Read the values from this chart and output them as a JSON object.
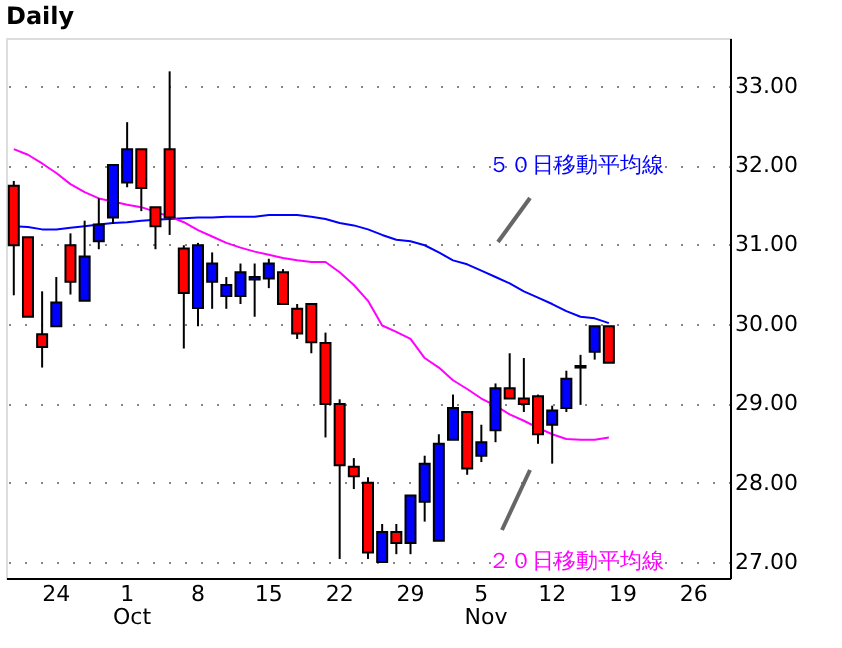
{
  "chart_data": {
    "type": "candlestick",
    "title": "Daily",
    "categories": [
      null,
      null,
      null,
      "24",
      null,
      null,
      null,
      null,
      "1",
      null,
      null,
      null,
      null,
      "8",
      null,
      null,
      null,
      null,
      "15",
      null,
      null,
      null,
      null,
      "22",
      null,
      null,
      null,
      null,
      "29",
      null,
      null,
      null,
      null,
      "5",
      null,
      null,
      null,
      null,
      "12",
      null,
      null,
      null,
      null,
      "19",
      null,
      null,
      null,
      null,
      "26",
      null,
      null
    ],
    "ohlc": [
      [
        31.74,
        31.8,
        30.36,
        30.99
      ],
      [
        31.09,
        31.09,
        30.09,
        30.09
      ],
      [
        29.87,
        30.41,
        29.45,
        29.71
      ],
      [
        29.97,
        30.59,
        29.97,
        30.27
      ],
      [
        30.99,
        31.14,
        30.37,
        30.53
      ],
      [
        30.29,
        31.3,
        30.29,
        30.85
      ],
      [
        31.04,
        31.58,
        30.94,
        31.25
      ],
      [
        31.34,
        32.0,
        31.26,
        32.0
      ],
      [
        31.78,
        32.54,
        31.72,
        32.2
      ],
      [
        32.2,
        32.2,
        31.42,
        31.71
      ],
      [
        31.47,
        31.47,
        30.94,
        31.23
      ],
      [
        32.2,
        33.18,
        31.12,
        31.34
      ],
      [
        30.95,
        30.99,
        29.69,
        30.39
      ],
      [
        30.2,
        31.02,
        29.97,
        30.99
      ],
      [
        30.53,
        30.9,
        30.19,
        30.76
      ],
      [
        30.35,
        30.59,
        30.19,
        30.49
      ],
      [
        30.35,
        30.76,
        30.25,
        30.65
      ],
      [
        30.56,
        30.76,
        30.09,
        30.59
      ],
      [
        30.57,
        30.82,
        30.45,
        30.76
      ],
      [
        30.65,
        30.69,
        30.25,
        30.25
      ],
      [
        30.19,
        30.25,
        29.81,
        29.88
      ],
      [
        30.25,
        30.25,
        29.63,
        29.77
      ],
      [
        29.76,
        29.89,
        28.57,
        28.99
      ],
      [
        28.99,
        29.05,
        27.04,
        28.22
      ],
      [
        28.2,
        28.31,
        27.92,
        28.08
      ],
      [
        28.0,
        28.07,
        27.04,
        27.12
      ],
      [
        27.0,
        27.48,
        27.0,
        27.38
      ],
      [
        27.38,
        27.48,
        27.1,
        27.24
      ],
      [
        27.24,
        27.84,
        27.1,
        27.84
      ],
      [
        27.76,
        28.34,
        27.51,
        28.24
      ],
      [
        27.27,
        28.61,
        27.27,
        28.49
      ],
      [
        28.54,
        29.11,
        28.54,
        28.94
      ],
      [
        28.89,
        28.89,
        28.1,
        28.18
      ],
      [
        28.34,
        28.73,
        28.26,
        28.51
      ],
      [
        28.66,
        29.25,
        28.51,
        29.19
      ],
      [
        29.19,
        29.63,
        29.06,
        29.06
      ],
      [
        29.06,
        29.57,
        28.89,
        28.99
      ],
      [
        29.09,
        29.11,
        28.49,
        28.61
      ],
      [
        28.73,
        28.97,
        28.24,
        28.91
      ],
      [
        28.94,
        29.41,
        28.89,
        29.31
      ],
      [
        29.45,
        29.61,
        28.98,
        29.47
      ],
      [
        29.65,
        29.97,
        29.55,
        29.97
      ],
      [
        29.97,
        29.97,
        29.51,
        29.51
      ],
      null,
      null,
      null,
      null,
      null,
      null,
      null,
      null
    ],
    "colors": [
      "#ff0000",
      "#ff0000",
      "#ff0000",
      "#0000ff",
      "#ff0000",
      "#0000ff",
      "#0000ff",
      "#0000ff",
      "#0000ff",
      "#ff0000",
      "#ff0000",
      "#ff0000",
      "#ff0000",
      "#0000ff",
      "#0000ff",
      "#0000ff",
      "#0000ff",
      "#0000ff",
      "#0000ff",
      "#ff0000",
      "#ff0000",
      "#ff0000",
      "#ff0000",
      "#ff0000",
      "#ff0000",
      "#ff0000",
      "#0000ff",
      "#ff0000",
      "#0000ff",
      "#0000ff",
      "#0000ff",
      "#0000ff",
      "#ff0000",
      "#0000ff",
      "#0000ff",
      "#ff0000",
      "#ff0000",
      "#ff0000",
      "#0000ff",
      "#0000ff",
      "#0000ff",
      "#0000ff",
      "#ff0000",
      null,
      null,
      null,
      null,
      null,
      null,
      null,
      null
    ],
    "series": [
      {
        "name": "５０日移動平均線",
        "type": "line",
        "color": "#0000ff",
        "values": [
          31.23,
          31.22,
          31.19,
          31.19,
          31.21,
          31.23,
          31.25,
          31.27,
          31.28,
          31.3,
          31.31,
          31.32,
          31.33,
          31.34,
          31.34,
          31.35,
          31.35,
          31.35,
          31.37,
          31.37,
          31.37,
          31.35,
          31.32,
          31.27,
          31.24,
          31.19,
          31.12,
          31.06,
          31.04,
          30.99,
          30.9,
          30.8,
          30.75,
          30.67,
          30.59,
          30.51,
          30.41,
          30.33,
          30.25,
          30.16,
          30.09,
          30.07,
          30.01,
          null,
          null,
          null,
          null,
          null,
          null,
          null,
          null
        ]
      },
      {
        "name": "２０日移動平均線",
        "type": "line",
        "color": "#ff00ff",
        "values": [
          32.2,
          32.13,
          32.02,
          31.9,
          31.76,
          31.66,
          31.58,
          31.54,
          31.5,
          31.47,
          31.41,
          31.35,
          31.28,
          31.18,
          31.1,
          31.02,
          30.96,
          30.91,
          30.87,
          30.83,
          30.8,
          30.78,
          30.78,
          30.65,
          30.49,
          30.29,
          29.98,
          29.9,
          29.81,
          29.57,
          29.45,
          29.29,
          29.18,
          29.06,
          28.97,
          28.86,
          28.78,
          28.69,
          28.61,
          28.55,
          28.54,
          28.54,
          28.57,
          null,
          null,
          null,
          null,
          null,
          null,
          null,
          null
        ]
      }
    ],
    "annotations": [
      "Oct",
      "Nov"
    ],
    "ylim": [
      26.8,
      33.6
    ],
    "yticks": [
      {
        "value": 27,
        "label": "27.00"
      },
      {
        "value": 28,
        "label": "28.00"
      },
      {
        "value": 29,
        "label": "29.00"
      },
      {
        "value": 30,
        "label": "30.00"
      },
      {
        "value": 31,
        "label": "31.00"
      },
      {
        "value": 32,
        "label": "32.00"
      },
      {
        "value": 33,
        "label": "33.00"
      }
    ],
    "grid": "y"
  }
}
